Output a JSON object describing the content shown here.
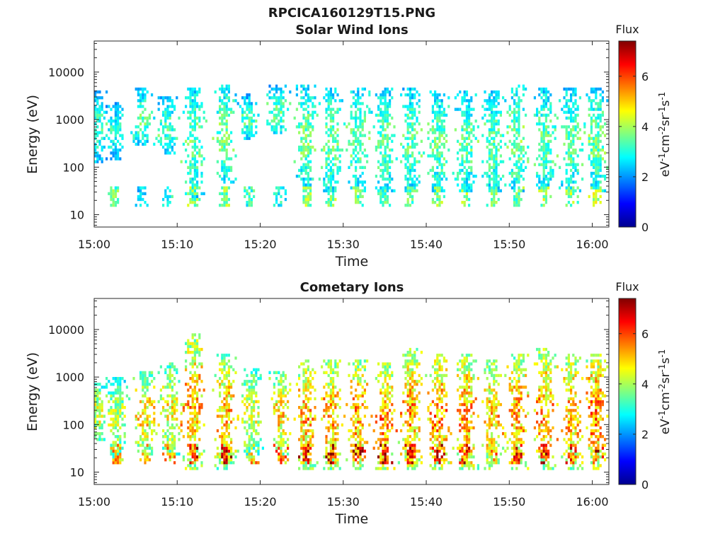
{
  "figure_title": "RPCICA160129T15.PNG",
  "chart_data": [
    {
      "type": "heatmap",
      "title": "Solar Wind Ions",
      "xlabel": "Time",
      "ylabel": "Energy (eV)",
      "xticks": [
        "15:00",
        "15:10",
        "15:20",
        "15:30",
        "15:40",
        "15:50",
        "16:00"
      ],
      "xlim_minutes": [
        0,
        62
      ],
      "yticks": [
        "10",
        "100",
        "1000",
        "10000"
      ],
      "ylim": [
        5.5,
        45000
      ],
      "yscale": "log",
      "colorbar": {
        "title": "Flux",
        "label": "eV-1cm-2sr-1s-1",
        "ticks": [
          "0",
          "2",
          "4",
          "6"
        ],
        "range": [
          0,
          7.4
        ],
        "colormap": "jet"
      },
      "bursts": [
        {
          "t": 0.3,
          "e_low": 150,
          "e_high": 2500,
          "peak": 2.8,
          "low_band": 0
        },
        {
          "t": 2.5,
          "e_low": 180,
          "e_high": 1500,
          "peak": 2.7,
          "low_band": 3.5
        },
        {
          "t": 5.8,
          "e_low": 350,
          "e_high": 3000,
          "peak": 3.0,
          "low_band": 2.5
        },
        {
          "t": 8.8,
          "e_low": 220,
          "e_high": 2000,
          "peak": 2.9,
          "low_band": 3.0
        },
        {
          "t": 12.0,
          "e_low": 30,
          "e_high": 3000,
          "peak": 3.0,
          "low_band": 3.8
        },
        {
          "t": 15.8,
          "e_low": 60,
          "e_high": 3500,
          "peak": 3.1,
          "low_band": 3.8
        },
        {
          "t": 18.7,
          "e_low": 450,
          "e_high": 2200,
          "peak": 2.9,
          "low_band": 3.2
        },
        {
          "t": 22.2,
          "e_low": 600,
          "e_high": 3500,
          "peak": 3.0,
          "low_band": 3.0
        },
        {
          "t": 25.5,
          "e_low": 50,
          "e_high": 3500,
          "peak": 3.1,
          "low_band": 3.8
        },
        {
          "t": 28.6,
          "e_low": 40,
          "e_high": 3200,
          "peak": 3.1,
          "low_band": 3.8
        },
        {
          "t": 31.8,
          "e_low": 40,
          "e_high": 3000,
          "peak": 3.0,
          "low_band": 3.6
        },
        {
          "t": 35.0,
          "e_low": 40,
          "e_high": 3000,
          "peak": 3.0,
          "low_band": 3.4
        },
        {
          "t": 38.2,
          "e_low": 40,
          "e_high": 3000,
          "peak": 3.0,
          "low_band": 3.5
        },
        {
          "t": 41.5,
          "e_low": 40,
          "e_high": 2500,
          "peak": 3.0,
          "low_band": 3.8
        },
        {
          "t": 44.8,
          "e_low": 40,
          "e_high": 2500,
          "peak": 3.0,
          "low_band": 3.8
        },
        {
          "t": 48.0,
          "e_low": 40,
          "e_high": 2500,
          "peak": 3.0,
          "low_band": 3.5
        },
        {
          "t": 51.0,
          "e_low": 40,
          "e_high": 3500,
          "peak": 3.1,
          "low_band": 3.6
        },
        {
          "t": 54.3,
          "e_low": 40,
          "e_high": 3000,
          "peak": 3.0,
          "low_band": 4.0
        },
        {
          "t": 57.5,
          "e_low": 40,
          "e_high": 3000,
          "peak": 3.0,
          "low_band": 3.8
        },
        {
          "t": 60.5,
          "e_low": 40,
          "e_high": 3000,
          "peak": 3.1,
          "low_band": 4.2
        }
      ]
    },
    {
      "type": "heatmap",
      "title": "Cometary Ions",
      "xlabel": "Time",
      "ylabel": "Energy (eV)",
      "xticks": [
        "15:00",
        "15:10",
        "15:20",
        "15:30",
        "15:40",
        "15:50",
        "16:00"
      ],
      "xlim_minutes": [
        0,
        62
      ],
      "yticks": [
        "10",
        "100",
        "1000",
        "10000"
      ],
      "ylim": [
        5.5,
        45000
      ],
      "yscale": "log",
      "colorbar": {
        "title": "Flux",
        "label": "eV-1cm-2sr-1s-1",
        "ticks": [
          "0",
          "2",
          "4",
          "6"
        ],
        "range": [
          0,
          7.4
        ],
        "colormap": "jet"
      },
      "bursts": [
        {
          "t": 0.3,
          "e_low": 60,
          "e_high": 500,
          "peak": 3.8,
          "low_band": 0
        },
        {
          "t": 2.8,
          "e_low": 25,
          "e_high": 600,
          "peak": 3.6,
          "low_band": 5.0
        },
        {
          "t": 6.2,
          "e_low": 30,
          "e_high": 800,
          "peak": 4.2,
          "low_band": 5.0
        },
        {
          "t": 9.2,
          "e_low": 30,
          "e_high": 1200,
          "peak": 4.0,
          "low_band": 5.0
        },
        {
          "t": 12.0,
          "e_low": 15,
          "e_high": 5000,
          "peak": 4.5,
          "low_band": 6.5
        },
        {
          "t": 15.8,
          "e_low": 15,
          "e_high": 2000,
          "peak": 4.4,
          "low_band": 6.5
        },
        {
          "t": 19.0,
          "e_low": 30,
          "e_high": 1000,
          "peak": 3.8,
          "low_band": 5.0
        },
        {
          "t": 22.5,
          "e_low": 30,
          "e_high": 900,
          "peak": 4.2,
          "low_band": 5.5
        },
        {
          "t": 25.5,
          "e_low": 15,
          "e_high": 1500,
          "peak": 4.5,
          "low_band": 6.2
        },
        {
          "t": 28.6,
          "e_low": 15,
          "e_high": 1500,
          "peak": 4.5,
          "low_band": 6.5
        },
        {
          "t": 31.8,
          "e_low": 15,
          "e_high": 1500,
          "peak": 4.6,
          "low_band": 6.2
        },
        {
          "t": 35.0,
          "e_low": 15,
          "e_high": 1200,
          "peak": 4.7,
          "low_band": 6.3
        },
        {
          "t": 38.2,
          "e_low": 15,
          "e_high": 2500,
          "peak": 4.6,
          "low_band": 6.2
        },
        {
          "t": 41.5,
          "e_low": 15,
          "e_high": 2000,
          "peak": 4.7,
          "low_band": 6.5
        },
        {
          "t": 44.8,
          "e_low": 15,
          "e_high": 2000,
          "peak": 4.6,
          "low_band": 6.2
        },
        {
          "t": 48.0,
          "e_low": 15,
          "e_high": 1500,
          "peak": 4.4,
          "low_band": 5.8
        },
        {
          "t": 51.0,
          "e_low": 15,
          "e_high": 2000,
          "peak": 4.5,
          "low_band": 6.0
        },
        {
          "t": 54.3,
          "e_low": 15,
          "e_high": 2500,
          "peak": 4.6,
          "low_band": 6.4
        },
        {
          "t": 57.5,
          "e_low": 15,
          "e_high": 2000,
          "peak": 4.5,
          "low_band": 6.0
        },
        {
          "t": 60.5,
          "e_low": 15,
          "e_high": 2000,
          "peak": 4.8,
          "low_band": 6.8
        }
      ]
    }
  ]
}
